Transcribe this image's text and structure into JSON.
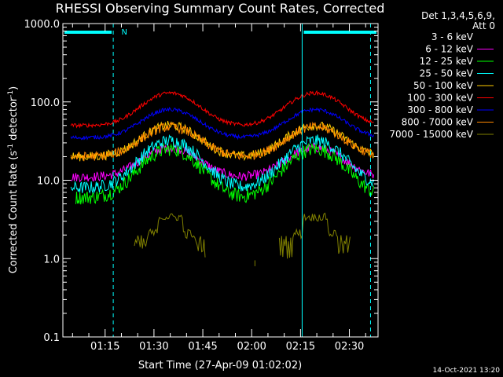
{
  "chart_data": {
    "type": "line",
    "title": "RHESSI Observing Summary Count Rates, Corrected",
    "xlabel": "Start Time (27-Apr-09 01:02:02)",
    "ylabel_main": "Corrected Count Rate (s",
    "ylabel_sup1": "-1",
    "ylabel_mid": " detector",
    "ylabel_sup2": "-1",
    "ylabel_end": ")",
    "y_scale": "log",
    "ylim": [
      0.1,
      1000
    ],
    "yticks": [
      {
        "value": 0.1,
        "label": "0.1"
      },
      {
        "value": 1,
        "label": "1.0"
      },
      {
        "value": 10,
        "label": "10.0"
      },
      {
        "value": 100,
        "label": "100.0"
      },
      {
        "value": 1000,
        "label": "1000.0"
      }
    ],
    "x_start_min": 62.03,
    "x_end_min": 158.8,
    "xticks": [
      {
        "value": 75,
        "label": "01:15"
      },
      {
        "value": 90,
        "label": "01:30"
      },
      {
        "value": 105,
        "label": "01:45"
      },
      {
        "value": 120,
        "label": "02:00"
      },
      {
        "value": 135,
        "label": "02:15"
      },
      {
        "value": 150,
        "label": "02:30"
      }
    ],
    "legend_header": [
      "Det 1,3,4,5,6,9,",
      "Att 0"
    ],
    "legend_position": "right",
    "series": [
      {
        "name": "3 - 6 keV",
        "color": "#000000",
        "base": 5.5,
        "peak": 17
      },
      {
        "name": "6 - 12 keV",
        "color": "#ff00ff",
        "base": 11,
        "peak": 26
      },
      {
        "name": "12 - 25 keV",
        "color": "#00ff00",
        "base": 6,
        "peak": 25
      },
      {
        "name": "25 - 50 keV",
        "color": "#00ffff",
        "base": 8,
        "peak": 32
      },
      {
        "name": "50 - 100 keV",
        "color": "#ffcc00",
        "base": 20,
        "peak": 50
      },
      {
        "name": "100 - 300 keV",
        "color": "#ff0000",
        "base": 50,
        "peak": 130
      },
      {
        "name": "300 - 800 keV",
        "color": "#0000ff",
        "base": 35,
        "peak": 80
      },
      {
        "name": "800 - 7000 keV",
        "color": "#ff8800",
        "base": 20,
        "peak": 48
      },
      {
        "name": "7000 - 15000 keV",
        "color": "#808000",
        "base": 1.0,
        "peak": 3.5
      }
    ],
    "peaks_at": [
      95,
      139.5
    ],
    "night_intervals": [
      [
        62.03,
        77.5
      ],
      [
        135.5,
        158.8
      ]
    ],
    "night_markers": [
      {
        "value": 62.03,
        "solid": true
      },
      {
        "value": 77.5,
        "solid": false
      },
      {
        "value": 135.5,
        "solid": true
      },
      {
        "value": 156.5,
        "solid": false
      }
    ],
    "saa_label": "N",
    "saa_label_at": 80
  },
  "timestamp": "14-Oct-2021 13:20"
}
